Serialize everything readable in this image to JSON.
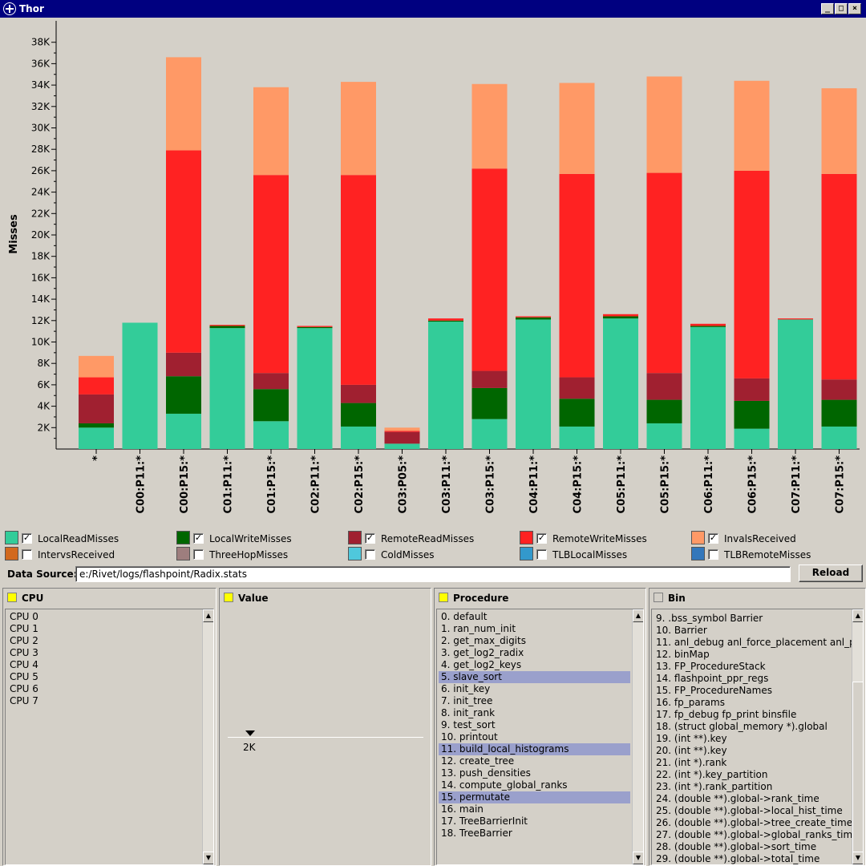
{
  "window": {
    "title": "Thor"
  },
  "chart_data": {
    "type": "bar",
    "stacked": true,
    "ylabel": "Misses",
    "ylim": [
      0,
      40000
    ],
    "yticks": [
      "2K",
      "4K",
      "6K",
      "8K",
      "10K",
      "12K",
      "14K",
      "16K",
      "18K",
      "20K",
      "22K",
      "24K",
      "26K",
      "28K",
      "30K",
      "32K",
      "34K",
      "36K",
      "38K"
    ],
    "categories": [
      "*",
      "C00:P11:*",
      "C00:P15:*",
      "C01:P11:*",
      "C01:P15:*",
      "C02:P11:*",
      "C02:P15:*",
      "C03:P05:*",
      "C03:P11:*",
      "C03:P15:*",
      "C04:P11:*",
      "C04:P15:*",
      "C05:P11:*",
      "C05:P15:*",
      "C06:P11:*",
      "C06:P15:*",
      "C07:P11:*",
      "C07:P15:*"
    ],
    "series": [
      {
        "name": "LocalReadMisses",
        "color": "#33cc99",
        "values": [
          2000,
          11800,
          3300,
          11300,
          2600,
          11300,
          2100,
          500,
          11900,
          2800,
          12100,
          2100,
          12200,
          2400,
          11400,
          1900,
          12100,
          2100
        ]
      },
      {
        "name": "LocalWriteMisses",
        "color": "#006600",
        "values": [
          400,
          0,
          3500,
          200,
          3000,
          100,
          2200,
          0,
          100,
          2900,
          200,
          2600,
          200,
          2200,
          100,
          2600,
          0,
          2500
        ]
      },
      {
        "name": "RemoteReadMisses",
        "color": "#a02030",
        "values": [
          2700,
          0,
          2200,
          0,
          1500,
          0,
          1700,
          1100,
          0,
          1600,
          0,
          2000,
          0,
          2500,
          0,
          2100,
          0,
          1900
        ]
      },
      {
        "name": "RemoteWriteMisses",
        "color": "#ff2222",
        "values": [
          1600,
          0,
          18900,
          100,
          18500,
          100,
          19600,
          100,
          200,
          18900,
          100,
          19000,
          200,
          18700,
          200,
          19400,
          100,
          19200
        ]
      },
      {
        "name": "InvalsReceived",
        "color": "#ff9966",
        "values": [
          2000,
          0,
          8700,
          0,
          8200,
          0,
          8700,
          300,
          0,
          7900,
          0,
          8500,
          0,
          9000,
          0,
          8400,
          0,
          8000
        ]
      }
    ],
    "xlabel": ""
  },
  "legend": [
    {
      "label": "LocalReadMisses",
      "color": "#33cc99",
      "checked": "✓"
    },
    {
      "label": "LocalWriteMisses",
      "color": "#006600",
      "checked": "✓"
    },
    {
      "label": "RemoteReadMisses",
      "color": "#a02030",
      "checked": "✓"
    },
    {
      "label": "RemoteWriteMisses",
      "color": "#ff2222",
      "checked": "✓"
    },
    {
      "label": "InvalsReceived",
      "color": "#ff9966",
      "checked": "✓"
    },
    {
      "label": "IntervsReceived",
      "color": "#d2691e",
      "checked": ""
    },
    {
      "label": "ThreeHopMisses",
      "color": "#9e7e7e",
      "checked": ""
    },
    {
      "label": "ColdMisses",
      "color": "#4fc8dc",
      "checked": ""
    },
    {
      "label": "TLBLocalMisses",
      "color": "#3399cc",
      "checked": ""
    },
    {
      "label": "TLBRemoteMisses",
      "color": "#3377bb",
      "checked": ""
    }
  ],
  "datasource": {
    "label": "Data Source:",
    "value": "e:/Rivet/logs/flashpoint/Radix.stats",
    "reload": "Reload"
  },
  "panels": {
    "cpu": {
      "title": "CPU",
      "items": [
        "CPU 0",
        "CPU 1",
        "CPU 2",
        "CPU 3",
        "CPU 4",
        "CPU 5",
        "CPU 6",
        "CPU 7"
      ]
    },
    "value": {
      "title": "Value",
      "marker": "2K"
    },
    "procedure": {
      "title": "Procedure",
      "items": [
        "0. default",
        "1. ran_num_init",
        "2. get_max_digits",
        "3. get_log2_radix",
        "4. get_log2_keys",
        "5. slave_sort",
        "6. init_key",
        "7. init_tree",
        "8. init_rank",
        "9. test_sort",
        "10. printout",
        "11. build_local_histograms",
        "12. create_tree",
        "13. push_densities",
        "14. compute_global_ranks",
        "15. permutate",
        "16. main",
        "17. TreeBarrierInit",
        "18. TreeBarrier"
      ],
      "selected": [
        5,
        11,
        15
      ]
    },
    "bin": {
      "title": "Bin",
      "items": [
        "9. .bss_symbol Barrier",
        "10. Barrier",
        "11. anl_debug anl_force_placement anl_p",
        "12. binMap",
        "13. FP_ProcedureStack",
        "14. flashpoint_ppr_regs",
        "15. FP_ProcedureNames",
        "16. fp_params",
        "17. fp_debug fp_print binsfile",
        "18. (struct global_memory *).global",
        "19. (int **).key",
        "20. (int **).key",
        "21. (int *).rank",
        "22. (int *).key_partition",
        "23. (int *).rank_partition",
        "24. (double **).global->rank_time",
        "25. (double **).global->local_hist_time",
        "26. (double **).global->tree_create_time",
        "27. (double **).global->global_ranks_time",
        "28. (double **).global->sort_time",
        "29. (double **).global->total_time"
      ]
    }
  }
}
